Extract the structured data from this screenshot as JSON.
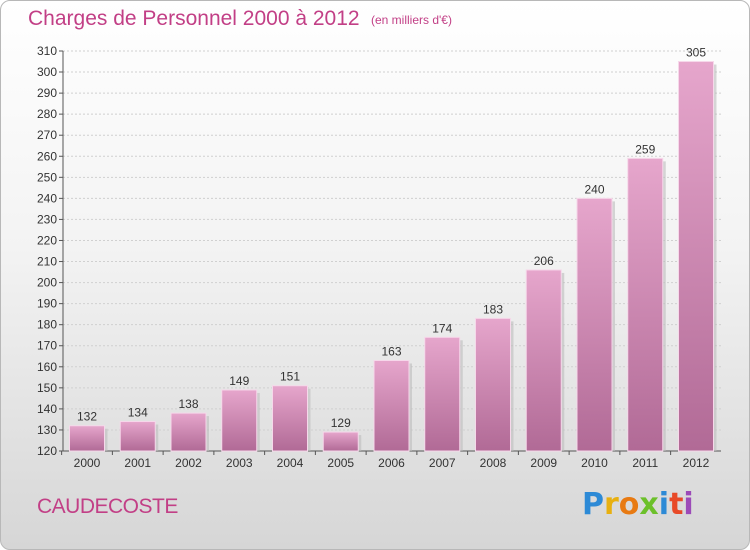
{
  "header": {
    "title": "Charges de Personnel 2000 à 2012",
    "subtitle": "(en milliers d'€)"
  },
  "footer": {
    "commune": "CAUDECOSTE",
    "logo": "Proxiti"
  },
  "colors": {
    "bar_top": "#e6a6cc",
    "bar_bottom": "#b16a96",
    "title": "#c23f86"
  },
  "chart_data": {
    "type": "bar",
    "title": "Charges de Personnel 2000 à 2012",
    "subtitle": "(en milliers d'€)",
    "categories": [
      "2000",
      "2001",
      "2002",
      "2003",
      "2004",
      "2005",
      "2006",
      "2007",
      "2008",
      "2009",
      "2010",
      "2011",
      "2012"
    ],
    "values": [
      132,
      134,
      138,
      149,
      151,
      129,
      163,
      174,
      183,
      206,
      240,
      259,
      305
    ],
    "ylim": [
      120,
      310
    ],
    "yticks": [
      120,
      130,
      140,
      150,
      160,
      170,
      180,
      190,
      200,
      210,
      220,
      230,
      240,
      250,
      260,
      270,
      280,
      290,
      300,
      310
    ],
    "grid": true,
    "data_labels": true,
    "legend": "none"
  }
}
